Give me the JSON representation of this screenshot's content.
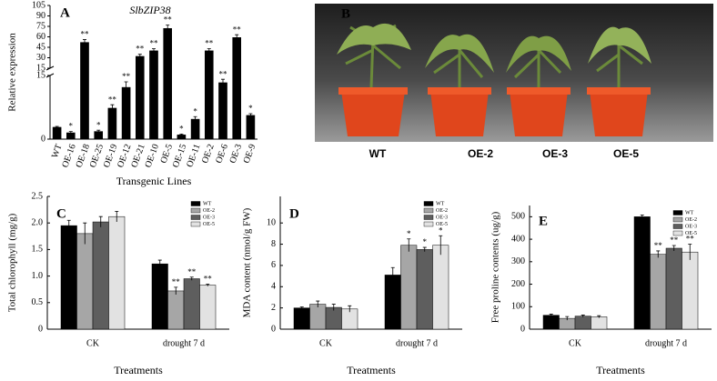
{
  "chart_data": [
    {
      "panel": "A",
      "type": "bar",
      "title": "SlbZIP38",
      "x_label": "Transgenic Lines",
      "y_label": "Relative expression",
      "categories": [
        "WT",
        "OE-16",
        "OE-18",
        "OE-25",
        "OE-19",
        "OE-12",
        "OE-21",
        "OE-10",
        "OE-5",
        "OE-15",
        "OE-11",
        "OE-2",
        "OE-6",
        "OE-3",
        "OE-9"
      ],
      "values": [
        2.8,
        1.5,
        52,
        1.8,
        7.3,
        12.2,
        32,
        40,
        72,
        1,
        4.7,
        40,
        13.3,
        59,
        5.6
      ],
      "errors": [
        0.2,
        0.3,
        4,
        0.3,
        0.8,
        1.3,
        3,
        3,
        5,
        0.2,
        0.6,
        3,
        0.8,
        4,
        0.4
      ],
      "annotations": [
        null,
        "*",
        "**",
        "*",
        "**",
        "**",
        "**",
        "**",
        "**",
        "*",
        "*",
        "**",
        "**",
        "**",
        "*"
      ],
      "color": "#000000",
      "ylim_lower": [
        0,
        15
      ],
      "yticks_lower": [
        0,
        15
      ],
      "ylim": [
        15,
        105
      ],
      "yticks": [
        15,
        30,
        45,
        60,
        75,
        90,
        105
      ]
    },
    {
      "panel": "C",
      "type": "bar",
      "x_label": "Treatments",
      "y_label": "Total chlorophyll (mg/g)",
      "categories": [
        "CK",
        "drought 7 d"
      ],
      "series": [
        {
          "name": "WT",
          "color": "#000000",
          "values": [
            1.95,
            1.23
          ],
          "errors": [
            0.1,
            0.07
          ],
          "annotations": [
            null,
            null
          ]
        },
        {
          "name": "OE-2",
          "color": "#a6a6a6",
          "values": [
            1.8,
            0.72
          ],
          "errors": [
            0.2,
            0.07
          ],
          "annotations": [
            null,
            "**"
          ]
        },
        {
          "name": "OE-3",
          "color": "#5e5e5e",
          "values": [
            2.02,
            0.95
          ],
          "errors": [
            0.1,
            0.03
          ],
          "annotations": [
            null,
            "**"
          ]
        },
        {
          "name": "OE-5",
          "color": "#e2e2e2",
          "values": [
            2.12,
            0.83
          ],
          "errors": [
            0.1,
            0.02
          ],
          "annotations": [
            null,
            "**"
          ]
        }
      ],
      "ylim": [
        0,
        2.5
      ],
      "yticks": [
        0,
        0.5,
        {
          "value": 1,
          "label": "1.0"
        },
        1.5,
        {
          "value": 2,
          "label": "2.0"
        },
        2.5
      ]
    },
    {
      "panel": "D",
      "type": "bar",
      "x_label": "Treatments",
      "y_label": "MDA content (nmol/g FW)",
      "categories": [
        "CK",
        "drought 7 d"
      ],
      "series": [
        {
          "name": "WT",
          "color": "#000000",
          "values": [
            2.0,
            5.1
          ],
          "errors": [
            0.1,
            0.7
          ],
          "annotations": [
            null,
            null
          ]
        },
        {
          "name": "OE-2",
          "color": "#a6a6a6",
          "values": [
            2.35,
            7.9
          ],
          "errors": [
            0.3,
            0.6
          ],
          "annotations": [
            null,
            "*"
          ]
        },
        {
          "name": "OE-3",
          "color": "#5e5e5e",
          "values": [
            2.05,
            7.5
          ],
          "errors": [
            0.3,
            0.2
          ],
          "annotations": [
            null,
            "*"
          ]
        },
        {
          "name": "OE-5",
          "color": "#e2e2e2",
          "values": [
            1.9,
            7.9
          ],
          "errors": [
            0.3,
            0.9
          ],
          "annotations": [
            null,
            "*"
          ]
        }
      ],
      "ylim": [
        0,
        12.5
      ],
      "yticks": [
        0,
        2,
        4,
        6,
        8,
        10
      ]
    },
    {
      "panel": "E",
      "type": "bar",
      "x_label": "Treatments",
      "y_label": "Free proline contents (ug/g)",
      "categories": [
        "CK",
        "drought 7 d"
      ],
      "series": [
        {
          "name": "WT",
          "color": "#000000",
          "values": [
            62,
            500
          ],
          "errors": [
            5,
            8
          ],
          "annotations": [
            null,
            null
          ]
        },
        {
          "name": "OE-2",
          "color": "#a6a6a6",
          "values": [
            48,
            333
          ],
          "errors": [
            8,
            15
          ],
          "annotations": [
            null,
            "**"
          ]
        },
        {
          "name": "OE-3",
          "color": "#5e5e5e",
          "values": [
            58,
            360
          ],
          "errors": [
            5,
            12
          ],
          "annotations": [
            null,
            "**"
          ]
        },
        {
          "name": "OE-5",
          "color": "#e2e2e2",
          "values": [
            55,
            343
          ],
          "errors": [
            5,
            35
          ],
          "annotations": [
            null,
            "**"
          ]
        }
      ],
      "ylim": [
        0,
        550
      ],
      "yticks": [
        0,
        100,
        200,
        300,
        400,
        500
      ]
    }
  ],
  "photo": {
    "panel": "B",
    "plants": [
      "WT",
      "OE-2",
      "OE-3",
      "OE-5"
    ]
  }
}
